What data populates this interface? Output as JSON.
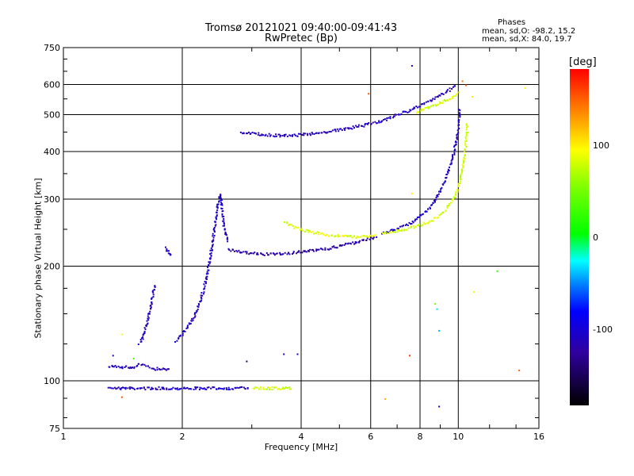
{
  "chart_data": {
    "type": "scatter",
    "title": "Tromsø 20121021 09:40:00-09:41:43",
    "subtitle": "RwPretec (Bp)",
    "xlabel": "Frequency [MHz]",
    "ylabel": "Stationary phase Virtual Height [km]",
    "x_scale": "log",
    "y_scale": "log",
    "xlim": [
      1,
      16
    ],
    "ylim": [
      75,
      750
    ],
    "x_ticks": [
      1,
      2,
      4,
      6,
      8,
      10,
      16
    ],
    "y_ticks": [
      75,
      100,
      200,
      300,
      400,
      500,
      600,
      750
    ],
    "grid": true,
    "stats": {
      "heading": "Phases",
      "o_line": "mean, sd,O: -98.2, 15.2",
      "x_line": "mean, sd,X:  84.0, 19.7"
    },
    "colorbar": {
      "title": "[deg]",
      "ticks": [
        "100",
        "0",
        "-100"
      ],
      "tick_values": [
        100,
        0,
        -100
      ],
      "range": [
        -180,
        180
      ]
    },
    "series": [
      {
        "x": [
          1.3,
          1.34,
          1.38,
          1.42,
          1.46,
          1.5,
          1.55,
          1.6,
          1.65,
          1.7,
          1.75,
          1.8,
          1.85
        ],
        "y": [
          97,
          96,
          96,
          96,
          96,
          96,
          96,
          96,
          96,
          96,
          96,
          96,
          96
        ],
        "phase": -110
      },
      {
        "x": [
          1.85,
          2.0,
          2.2,
          2.4,
          2.6,
          2.8,
          2.95
        ],
        "y": [
          96,
          96,
          96,
          96,
          96,
          96,
          96
        ],
        "phase": -105
      },
      {
        "x": [
          3.0,
          3.2,
          3.4,
          3.6,
          3.8
        ],
        "y": [
          96,
          96,
          96,
          96,
          96
        ],
        "phase": 80
      },
      {
        "x": [
          1.3,
          1.35,
          1.4,
          1.45,
          1.5,
          1.55,
          1.6,
          1.65,
          1.7,
          1.75,
          1.8,
          1.85
        ],
        "y": [
          110,
          110,
          109,
          109,
          109,
          111,
          110,
          109,
          108,
          108,
          108,
          108
        ],
        "phase": -110
      },
      {
        "x": [
          1.55,
          1.58,
          1.6,
          1.62,
          1.64,
          1.66,
          1.68,
          1.7
        ],
        "y": [
          126,
          130,
          136,
          142,
          150,
          160,
          170,
          180
        ],
        "phase": -110
      },
      {
        "x": [
          1.8,
          1.82,
          1.84,
          1.86,
          1.88
        ],
        "y": [
          225,
          222,
          218,
          216,
          215
        ],
        "phase": -110
      },
      {
        "x": [
          1.92,
          1.98,
          2.05,
          2.12,
          2.2,
          2.26,
          2.3,
          2.34,
          2.38,
          2.42,
          2.45,
          2.48,
          2.5,
          2.52,
          2.55,
          2.6
        ],
        "y": [
          128,
          132,
          138,
          146,
          160,
          175,
          190,
          210,
          235,
          265,
          290,
          310,
          300,
          270,
          250,
          232
        ],
        "phase": -105
      },
      {
        "x": [
          2.6,
          2.8,
          3.0,
          3.2,
          3.4,
          3.6,
          3.8,
          4.0,
          4.3,
          4.6,
          5.0,
          5.4,
          5.8,
          6.2
        ],
        "y": [
          222,
          219,
          217,
          216,
          216,
          217,
          218,
          219,
          221,
          223,
          227,
          231,
          236,
          240
        ],
        "phase": -120
      },
      {
        "x": [
          6.4,
          6.8,
          7.2,
          7.6,
          8.0,
          8.4,
          8.7,
          9.0,
          9.3,
          9.5,
          9.7,
          9.85,
          9.95,
          10.0,
          10.02
        ],
        "y": [
          245,
          250,
          256,
          262,
          272,
          285,
          300,
          320,
          345,
          370,
          400,
          430,
          460,
          490,
          520
        ],
        "phase": -105
      },
      {
        "x": [
          3.6,
          3.8,
          4.0,
          4.3,
          4.6,
          5.0,
          5.4,
          5.8,
          6.2
        ],
        "y": [
          262,
          255,
          250,
          246,
          243,
          241,
          240,
          240,
          242
        ],
        "phase": 85
      },
      {
        "x": [
          6.4,
          6.8,
          7.2,
          7.6,
          8.0,
          8.4,
          8.7,
          9.0,
          9.3,
          9.5,
          9.8,
          10.0,
          10.2,
          10.35,
          10.45,
          10.5
        ],
        "y": [
          244,
          247,
          250,
          254,
          258,
          263,
          268,
          275,
          285,
          295,
          310,
          330,
          360,
          400,
          440,
          480
        ],
        "phase": 80
      },
      {
        "x": [
          2.8,
          3.0,
          3.2,
          3.4,
          3.6,
          3.8,
          4.0,
          4.3,
          4.6,
          5.0,
          5.4,
          5.8,
          6.2,
          6.6,
          7.0,
          7.4,
          7.8,
          8.2,
          8.6,
          9.0,
          9.4,
          9.8
        ],
        "y": [
          452,
          448,
          445,
          443,
          442,
          443,
          445,
          448,
          452,
          458,
          465,
          472,
          480,
          490,
          502,
          512,
          525,
          538,
          552,
          565,
          580,
          600
        ],
        "phase": -110
      },
      {
        "x": [
          7.8,
          8.2,
          8.6,
          9.0,
          9.4,
          9.8,
          10.0
        ],
        "y": [
          510,
          520,
          530,
          540,
          550,
          562,
          575
        ],
        "phase": 80
      }
    ],
    "scattered_points": [
      {
        "x": 5.9,
        "y": 570,
        "phase": 150
      },
      {
        "x": 7.6,
        "y": 675,
        "phase": -110
      },
      {
        "x": 10.2,
        "y": 615,
        "phase": 140
      },
      {
        "x": 10.4,
        "y": 600,
        "phase": 150
      },
      {
        "x": 14.7,
        "y": 590,
        "phase": 90
      },
      {
        "x": 10.8,
        "y": 560,
        "phase": 100
      },
      {
        "x": 7.6,
        "y": 312,
        "phase": 100
      },
      {
        "x": 12.5,
        "y": 195,
        "phase": 20
      },
      {
        "x": 10.9,
        "y": 172,
        "phase": 90
      },
      {
        "x": 8.8,
        "y": 155,
        "phase": -30
      },
      {
        "x": 8.7,
        "y": 160,
        "phase": 50
      },
      {
        "x": 8.9,
        "y": 136,
        "phase": -40
      },
      {
        "x": 7.5,
        "y": 117,
        "phase": 160
      },
      {
        "x": 14.2,
        "y": 107,
        "phase": 150
      },
      {
        "x": 6.5,
        "y": 90,
        "phase": 120
      },
      {
        "x": 8.9,
        "y": 86,
        "phase": -100
      },
      {
        "x": 3.6,
        "y": 118,
        "phase": -110
      },
      {
        "x": 3.9,
        "y": 118,
        "phase": -100
      },
      {
        "x": 2.9,
        "y": 113,
        "phase": -150
      },
      {
        "x": 1.4,
        "y": 133,
        "phase": 90
      },
      {
        "x": 1.5,
        "y": 115,
        "phase": 30
      },
      {
        "x": 1.4,
        "y": 91,
        "phase": 150
      },
      {
        "x": 1.33,
        "y": 117,
        "phase": -110
      }
    ]
  }
}
